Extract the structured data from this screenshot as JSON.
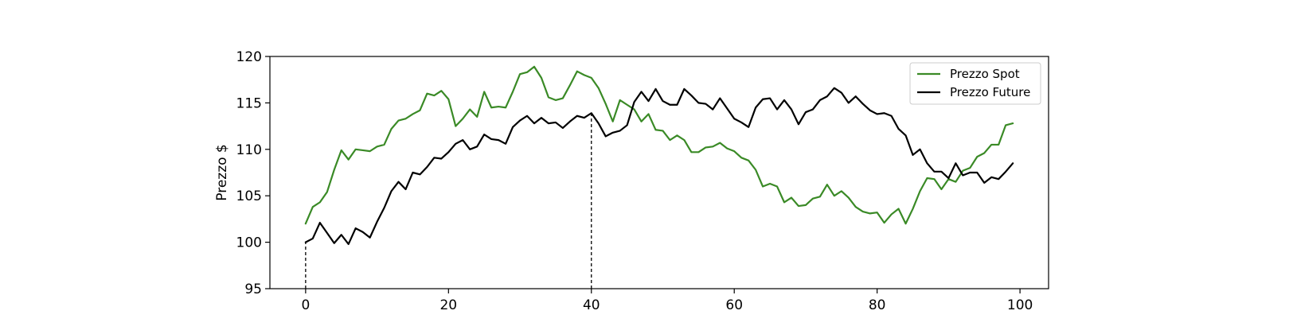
{
  "chart_data": {
    "type": "line",
    "title": "",
    "xlabel": "",
    "ylabel": "Prezzo $",
    "xlim": [
      -5,
      104
    ],
    "ylim": [
      95,
      120
    ],
    "xticks": [
      0,
      20,
      40,
      60,
      80,
      100
    ],
    "yticks": [
      95,
      100,
      105,
      110,
      115,
      120
    ],
    "grid": false,
    "legend_position": "top-right",
    "series": [
      {
        "name": "Prezzo Spot",
        "color": "#3a8a26",
        "x_start": 0,
        "values": [
          102.0,
          103.8,
          104.3,
          105.4,
          107.8,
          109.9,
          108.9,
          110.0,
          109.9,
          109.8,
          110.3,
          110.5,
          112.2,
          113.1,
          113.3,
          113.8,
          114.2,
          116.0,
          115.8,
          116.3,
          115.4,
          112.5,
          113.3,
          114.3,
          113.5,
          116.2,
          114.5,
          114.6,
          114.5,
          116.2,
          118.1,
          118.3,
          118.9,
          117.7,
          115.6,
          115.3,
          115.5,
          116.9,
          118.4,
          118.0,
          117.7,
          116.6,
          114.9,
          113.0,
          115.3,
          114.8,
          114.3,
          113.0,
          113.8,
          112.1,
          112.0,
          111.0,
          111.5,
          111.0,
          109.7,
          109.7,
          110.2,
          110.3,
          110.7,
          110.1,
          109.8,
          109.1,
          108.8,
          107.8,
          106.0,
          106.3,
          106.0,
          104.3,
          104.8,
          103.9,
          104.0,
          104.7,
          104.9,
          106.2,
          105.0,
          105.5,
          104.8,
          103.8,
          103.3,
          103.1,
          103.2,
          102.1,
          103.0,
          103.6,
          102.0,
          103.6,
          105.5,
          106.9,
          106.8,
          105.7,
          106.8,
          106.5,
          107.7,
          108.0,
          109.2,
          109.6,
          110.5,
          110.5,
          112.6,
          112.8
        ]
      },
      {
        "name": "Prezzo Future",
        "color": "#000000",
        "x_start": 0,
        "values": [
          100.0,
          100.4,
          102.1,
          101.0,
          99.9,
          100.8,
          99.8,
          101.5,
          101.1,
          100.5,
          102.2,
          103.7,
          105.5,
          106.5,
          105.7,
          107.5,
          107.3,
          108.1,
          109.1,
          109.0,
          109.7,
          110.6,
          111.0,
          110.0,
          110.3,
          111.6,
          111.1,
          111.0,
          110.6,
          112.4,
          113.1,
          113.6,
          112.8,
          113.4,
          112.8,
          112.9,
          112.3,
          113.0,
          113.6,
          113.4,
          113.9,
          112.8,
          111.4,
          111.8,
          112.0,
          112.6,
          115.1,
          116.2,
          115.2,
          116.5,
          115.2,
          114.8,
          114.8,
          116.5,
          115.8,
          115.0,
          114.9,
          114.3,
          115.5,
          114.4,
          113.3,
          112.9,
          112.4,
          114.5,
          115.4,
          115.5,
          114.3,
          115.3,
          114.3,
          112.7,
          114.0,
          114.3,
          115.3,
          115.7,
          116.6,
          116.1,
          115.0,
          115.7,
          114.9,
          114.2,
          113.8,
          113.9,
          113.6,
          112.2,
          111.5,
          109.4,
          110.0,
          108.5,
          107.6,
          107.6,
          106.9,
          108.5,
          107.2,
          107.5,
          107.5,
          106.4,
          107.0,
          106.8,
          107.6,
          108.5
        ]
      }
    ],
    "vlines": [
      {
        "x": 0,
        "y_from": 95,
        "y_to": 100.0,
        "style": "dashed"
      },
      {
        "x": 40,
        "y_from": 95,
        "y_to": 113.9,
        "style": "dashed"
      }
    ]
  }
}
